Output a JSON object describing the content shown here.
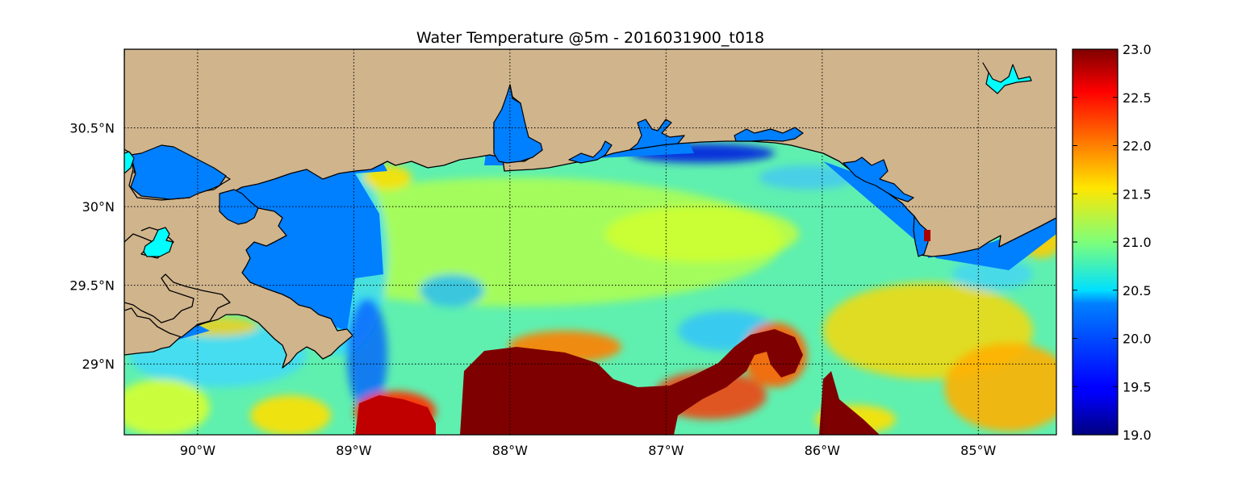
{
  "title": "Water Temperature @5m - 2016031900_t018",
  "map": {
    "lon_range": [
      -90.47,
      -84.5
    ],
    "lat_range": [
      28.55,
      31.0
    ],
    "land_color": "#d0b48c",
    "inland_water_color": "#007fff",
    "lake_color": "#00ffff",
    "longitude_ticks": [
      {
        "value": -90,
        "label": "90°W"
      },
      {
        "value": -89,
        "label": "89°W"
      },
      {
        "value": -88,
        "label": "88°W"
      },
      {
        "value": -87,
        "label": "87°W"
      },
      {
        "value": -86,
        "label": "86°W"
      },
      {
        "value": -85,
        "label": "85°W"
      }
    ],
    "latitude_ticks": [
      {
        "value": 30.5,
        "label": "30.5°N"
      },
      {
        "value": 30.0,
        "label": "30°N"
      },
      {
        "value": 29.5,
        "label": "29.5°N"
      },
      {
        "value": 29.0,
        "label": "29°N"
      }
    ],
    "gridlines": "dotted"
  },
  "colorbar": {
    "min": 19.0,
    "max": 23.0,
    "colormap": "jet",
    "ticks": [
      "23.0",
      "22.5",
      "22.0",
      "21.5",
      "21.0",
      "20.5",
      "20.0",
      "19.5",
      "19.0"
    ]
  }
}
